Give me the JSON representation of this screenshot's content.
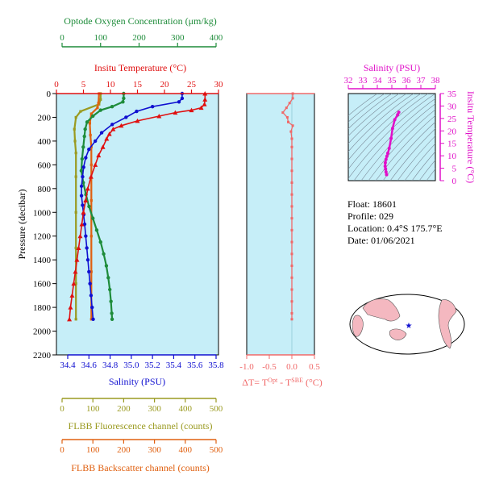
{
  "info": {
    "float": "Float:  18601",
    "profile": "Profile:  029",
    "location": "Location:  0.4°S  175.7°E",
    "date": "Date:  01/06/2021"
  },
  "colors": {
    "oxygen": "#1e8c3a",
    "temperature": "#e01010",
    "salinity": "#1010d0",
    "fluorescence": "#9a9a20",
    "backscatter": "#e06010",
    "delta": "#f06868",
    "ts": "#e010c8",
    "panel_bg": "#c6eef8"
  },
  "chart_data": [
    {
      "type": "line",
      "panel": "profiles",
      "ylabel": "Pressure (decibar)",
      "ylim": [
        2200,
        0
      ],
      "yticks": [
        0,
        200,
        400,
        600,
        800,
        1000,
        1200,
        1400,
        1600,
        1800,
        2000,
        2200
      ],
      "axes": {
        "oxygen": {
          "label": "Optode Oxygen Concentration (μm/kg)",
          "lim": [
            0,
            400
          ],
          "ticks": [
            0,
            100,
            200,
            300,
            400
          ]
        },
        "temperature": {
          "label": "Insitu Temperature (°C)",
          "lim": [
            0,
            30
          ],
          "ticks": [
            0,
            5,
            10,
            15,
            20,
            25,
            30
          ]
        },
        "salinity": {
          "label": "Salinity (PSU)",
          "lim": [
            34.4,
            35.8
          ],
          "ticks": [
            "34.4",
            "34.6",
            "34.8",
            "35.0",
            "35.2",
            "35.4",
            "35.6",
            "35.8"
          ]
        },
        "fluorescence": {
          "label": "FLBB Fluorescence channel (counts)",
          "lim": [
            0,
            500
          ],
          "ticks": [
            0,
            100,
            200,
            300,
            400,
            500
          ]
        },
        "backscatter": {
          "label": "FLBB Backscatter channel (counts)",
          "lim": [
            0,
            500
          ],
          "ticks": [
            0,
            100,
            200,
            300,
            400,
            500
          ]
        }
      },
      "series": [
        {
          "key": "temperature",
          "points": [
            [
              27.5,
              0
            ],
            [
              27.5,
              50
            ],
            [
              27.4,
              90
            ],
            [
              26.8,
              120
            ],
            [
              25,
              140
            ],
            [
              22,
              160
            ],
            [
              19,
              190
            ],
            [
              15,
              230
            ],
            [
              12,
              270
            ],
            [
              10.5,
              300
            ],
            [
              9.8,
              340
            ],
            [
              9.3,
              380
            ],
            [
              8.6,
              450
            ],
            [
              7.8,
              520
            ],
            [
              7.2,
              600
            ],
            [
              6.4,
              700
            ],
            [
              5.8,
              800
            ],
            [
              5.4,
              900
            ],
            [
              5,
              1000
            ],
            [
              4.7,
              1100
            ],
            [
              4.4,
              1200
            ],
            [
              4.1,
              1300
            ],
            [
              3.8,
              1400
            ],
            [
              3.5,
              1500
            ],
            [
              3.2,
              1600
            ],
            [
              2.9,
              1700
            ],
            [
              2.6,
              1800
            ],
            [
              2.4,
              1900
            ]
          ]
        },
        {
          "key": "salinity",
          "points": [
            [
              35.48,
              0
            ],
            [
              35.48,
              40
            ],
            [
              35.45,
              70
            ],
            [
              35.2,
              110
            ],
            [
              35.05,
              150
            ],
            [
              34.95,
              200
            ],
            [
              34.82,
              260
            ],
            [
              34.72,
              330
            ],
            [
              34.66,
              400
            ],
            [
              34.6,
              470
            ],
            [
              34.57,
              540
            ],
            [
              34.55,
              620
            ],
            [
              34.54,
              700
            ],
            [
              34.53,
              780
            ],
            [
              34.53,
              860
            ],
            [
              34.54,
              940
            ],
            [
              34.55,
              1020
            ],
            [
              34.56,
              1100
            ],
            [
              34.57,
              1200
            ],
            [
              34.58,
              1300
            ],
            [
              34.59,
              1400
            ],
            [
              34.6,
              1500
            ],
            [
              34.61,
              1600
            ],
            [
              34.62,
              1700
            ],
            [
              34.63,
              1800
            ],
            [
              34.64,
              1900
            ]
          ]
        },
        {
          "key": "oxygen",
          "points": [
            [
              160,
              0
            ],
            [
              160,
              40
            ],
            [
              158,
              70
            ],
            [
              130,
              110
            ],
            [
              100,
              140
            ],
            [
              80,
              190
            ],
            [
              65,
              240
            ],
            [
              60,
              300
            ],
            [
              58,
              360
            ],
            [
              55,
              450
            ],
            [
              52,
              550
            ],
            [
              50,
              650
            ],
            [
              55,
              750
            ],
            [
              62,
              850
            ],
            [
              70,
              950
            ],
            [
              80,
              1050
            ],
            [
              90,
              1150
            ],
            [
              100,
              1250
            ],
            [
              108,
              1350
            ],
            [
              115,
              1450
            ],
            [
              120,
              1550
            ],
            [
              124,
              1650
            ],
            [
              127,
              1750
            ],
            [
              129,
              1850
            ],
            [
              130,
              1900
            ]
          ]
        },
        {
          "key": "fluorescence",
          "points": [
            [
              125,
              0
            ],
            [
              125,
              50
            ],
            [
              120,
              90
            ],
            [
              60,
              150
            ],
            [
              45,
              200
            ],
            [
              40,
              300
            ],
            [
              42,
              400
            ],
            [
              45,
              500
            ],
            [
              45,
              700
            ],
            [
              45,
              1000
            ],
            [
              45,
              1300
            ],
            [
              45,
              1600
            ],
            [
              45,
              1900
            ]
          ]
        },
        {
          "key": "backscatter",
          "points": [
            [
              120,
              0
            ],
            [
              118,
              80
            ],
            [
              115,
              120
            ],
            [
              95,
              170
            ],
            [
              90,
              250
            ],
            [
              92,
              350
            ],
            [
              95,
              450
            ],
            [
              95,
              600
            ],
            [
              95,
              900
            ],
            [
              95,
              1200
            ],
            [
              95,
              1500
            ],
            [
              95,
              1900
            ]
          ]
        }
      ]
    },
    {
      "type": "line",
      "panel": "delta",
      "xlabel": "ΔT= T^Opt - T^SBE (°C)",
      "xlim": [
        -1.0,
        0.5
      ],
      "xticks": [
        "-1.0",
        "-0.5",
        "0.0",
        "0.5"
      ],
      "ylim": [
        2200,
        0
      ],
      "points": [
        [
          0.02,
          0
        ],
        [
          0.02,
          40
        ],
        [
          -0.05,
          80
        ],
        [
          -0.12,
          120
        ],
        [
          -0.2,
          160
        ],
        [
          -0.1,
          200
        ],
        [
          -0.08,
          240
        ],
        [
          0.02,
          270
        ],
        [
          -0.02,
          320
        ],
        [
          0,
          380
        ],
        [
          0,
          450
        ],
        [
          0,
          550
        ],
        [
          0,
          650
        ],
        [
          0,
          750
        ],
        [
          0,
          850
        ],
        [
          0,
          950
        ],
        [
          0,
          1050
        ],
        [
          0,
          1150
        ],
        [
          0,
          1250
        ],
        [
          0,
          1350
        ],
        [
          0,
          1450
        ],
        [
          0,
          1550
        ],
        [
          0,
          1650
        ],
        [
          0,
          1750
        ],
        [
          0,
          1850
        ],
        [
          0,
          1900
        ]
      ]
    },
    {
      "type": "line",
      "panel": "ts",
      "xlabel": "Salinity (PSU)",
      "ylabel": "Insitu Temperature (°C)",
      "xlim": [
        32,
        38
      ],
      "xticks": [
        32,
        33,
        34,
        35,
        36,
        37,
        38
      ],
      "ylim": [
        0,
        35
      ],
      "yticks": [
        0,
        5,
        10,
        15,
        20,
        25,
        30,
        35
      ],
      "points": [
        [
          34.64,
          2.4
        ],
        [
          34.6,
          3.5
        ],
        [
          34.57,
          4.7
        ],
        [
          34.54,
          5.8
        ],
        [
          34.55,
          7.2
        ],
        [
          34.6,
          8.6
        ],
        [
          34.66,
          9.8
        ],
        [
          34.72,
          11
        ],
        [
          34.82,
          13
        ],
        [
          34.95,
          17
        ],
        [
          35.05,
          21
        ],
        [
          35.2,
          24.5
        ],
        [
          35.4,
          26.5
        ],
        [
          35.48,
          27.5
        ]
      ]
    }
  ]
}
